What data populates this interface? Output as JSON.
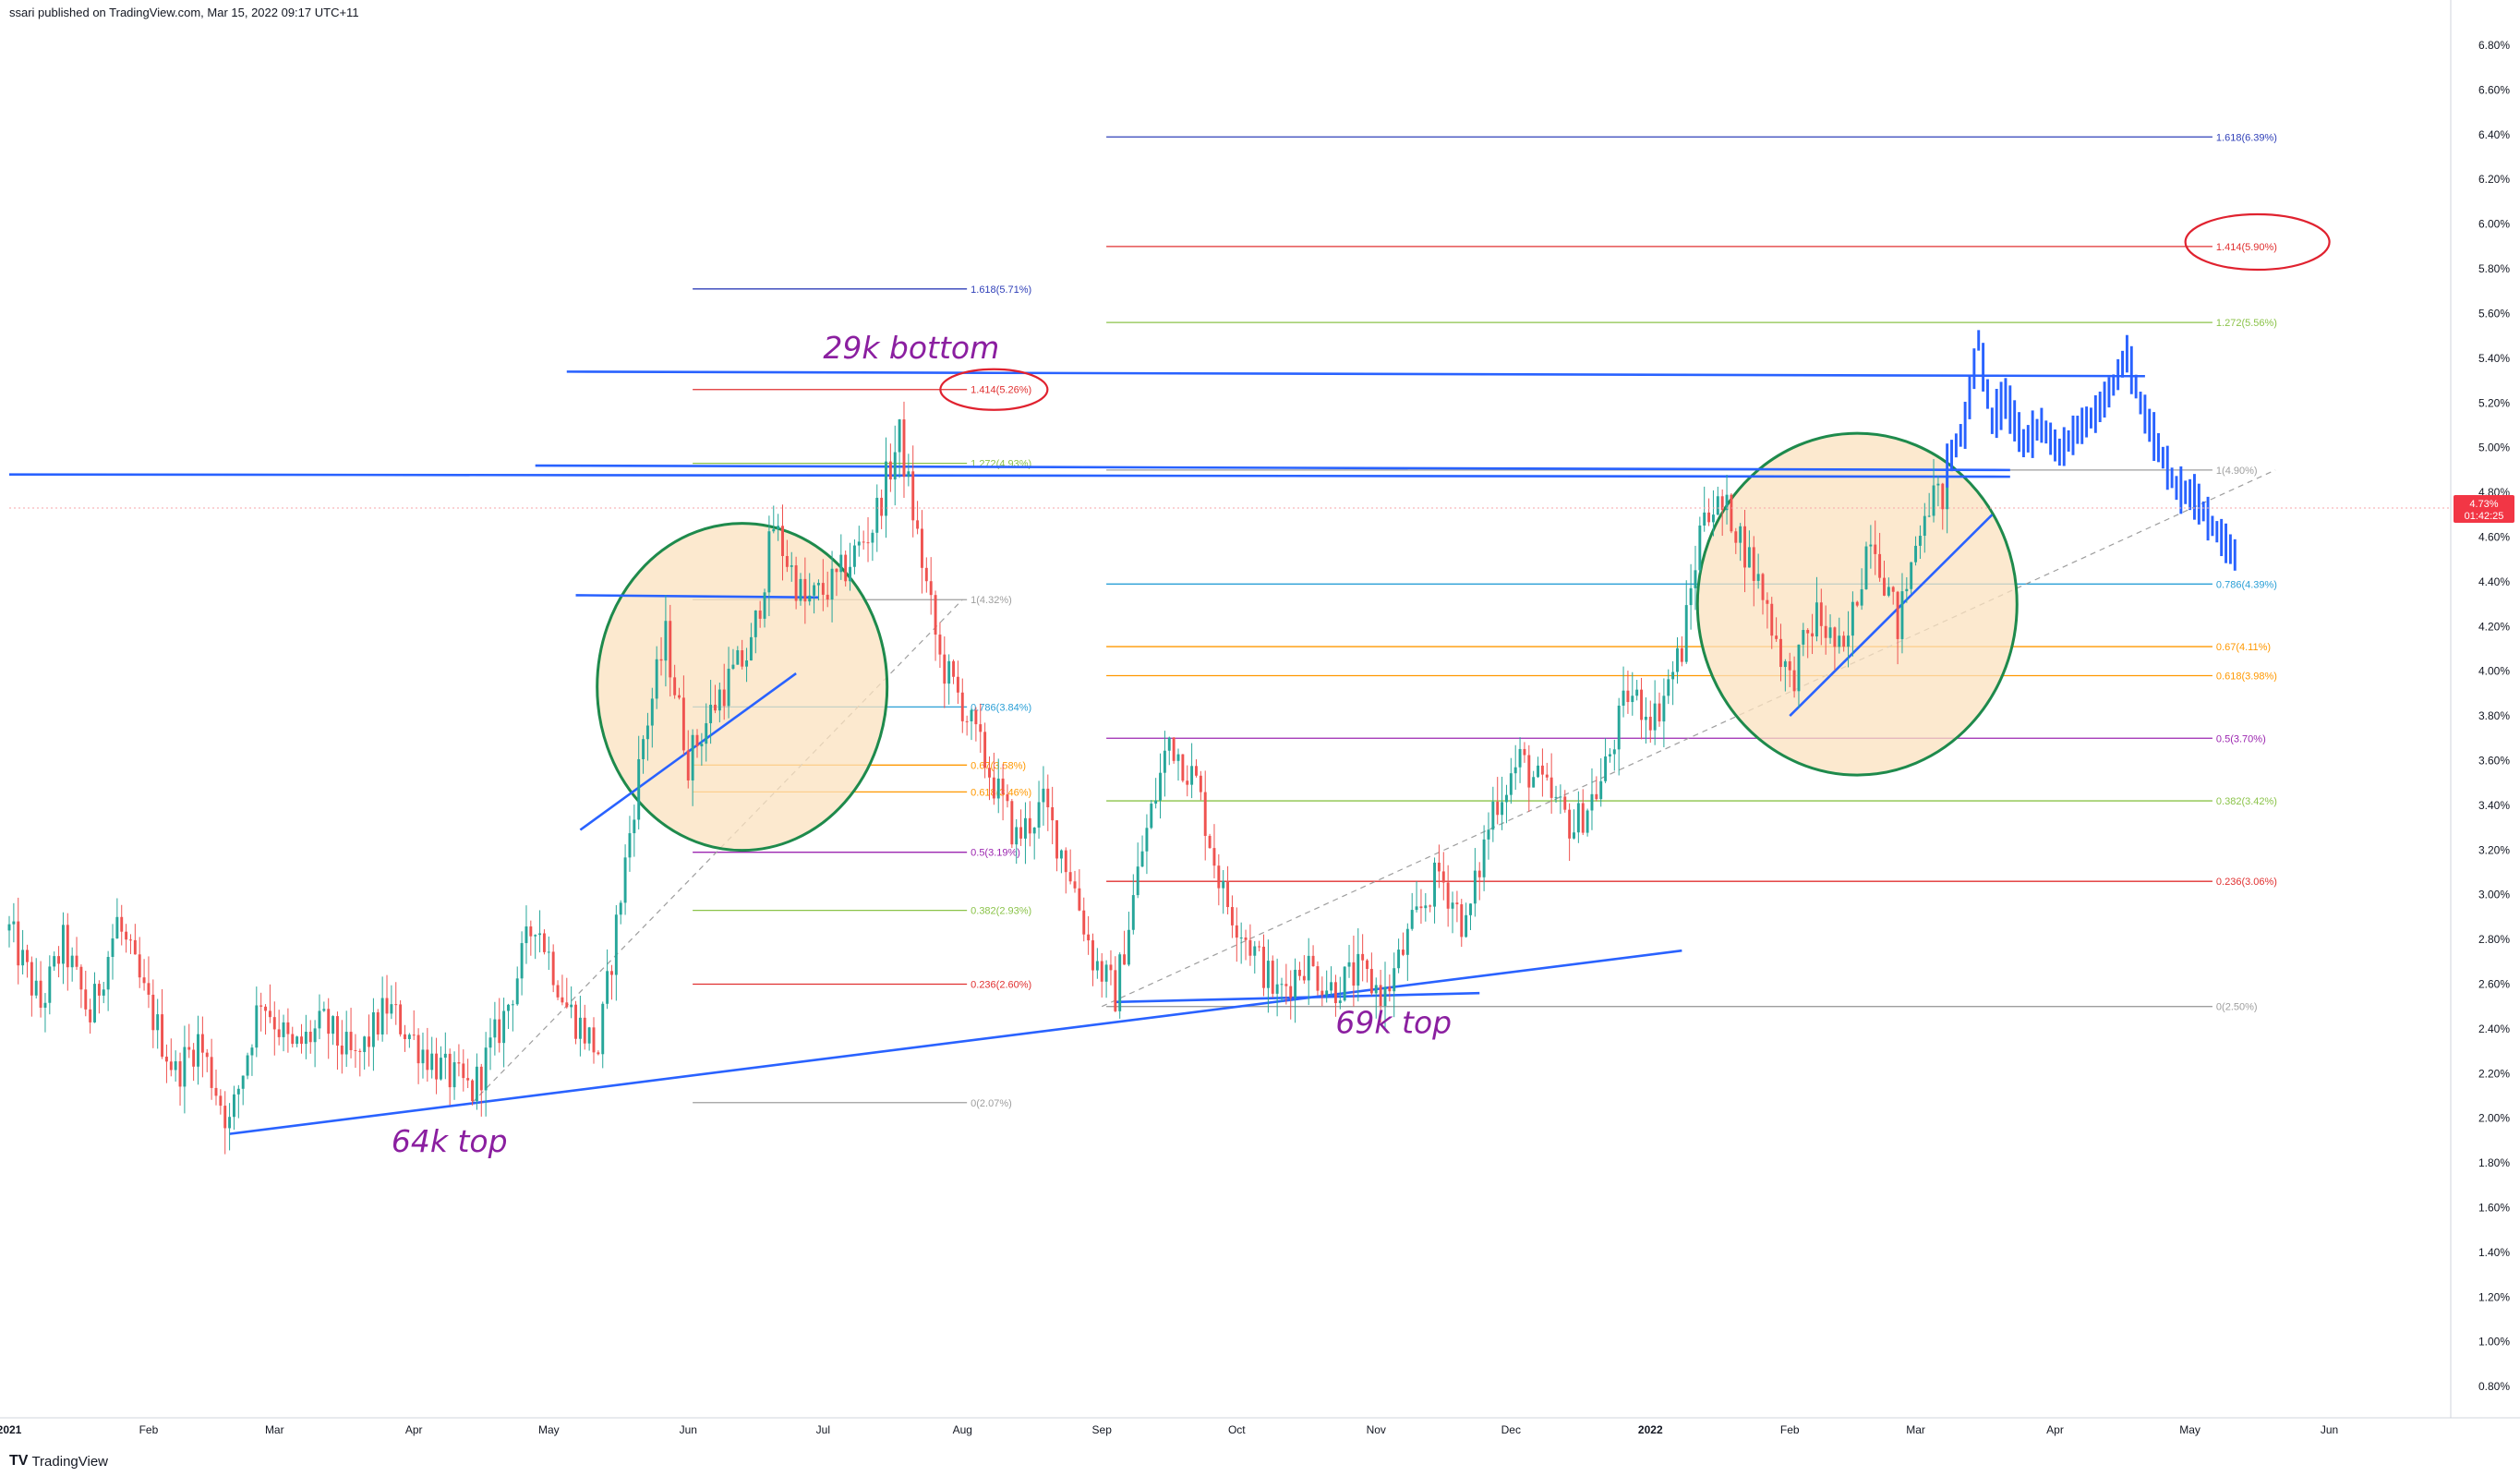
{
  "header": {
    "published_text": "ssari published on TradingView.com, Mar 15, 2022 09:17 UTC+11"
  },
  "footer": {
    "logo_text": "TV",
    "brand": "TradingView"
  },
  "price_badge": {
    "price": "4.73%",
    "countdown": "01:42:25",
    "color": "#f23645"
  },
  "chart_data": {
    "type": "candlestick",
    "title": "",
    "xlabel": "",
    "ylabel": "",
    "ylim": [
      0.66,
      6.92
    ],
    "yticks": [
      "6.80%",
      "6.60%",
      "6.40%",
      "6.20%",
      "6.00%",
      "5.80%",
      "5.60%",
      "5.40%",
      "5.20%",
      "5.00%",
      "4.80%",
      "4.60%",
      "4.40%",
      "4.20%",
      "4.00%",
      "3.80%",
      "3.60%",
      "3.40%",
      "3.20%",
      "3.00%",
      "2.80%",
      "2.60%",
      "2.40%",
      "2.20%",
      "2.00%",
      "1.80%",
      "1.60%",
      "1.40%",
      "1.20%",
      "1.00%",
      "0.80%"
    ],
    "xticks": [
      "2021",
      "Feb",
      "Mar",
      "Apr",
      "May",
      "Jun",
      "Jul",
      "Aug",
      "Sep",
      "Oct",
      "Nov",
      "Dec",
      "2022",
      "Feb",
      "Mar",
      "Apr",
      "May",
      "Jun"
    ],
    "xtick_days": [
      0,
      31,
      59,
      90,
      120,
      151,
      181,
      212,
      243,
      273,
      304,
      334,
      365,
      396,
      424,
      455,
      485,
      516
    ],
    "x_range_days": [
      0,
      543
    ],
    "current_price": 4.73,
    "price_path": [
      {
        "d": 0,
        "v": 2.84
      },
      {
        "d": 7,
        "v": 2.5
      },
      {
        "d": 12,
        "v": 2.78
      },
      {
        "d": 18,
        "v": 2.45
      },
      {
        "d": 24,
        "v": 2.88
      },
      {
        "d": 30,
        "v": 2.55
      },
      {
        "d": 37,
        "v": 2.2
      },
      {
        "d": 42,
        "v": 2.35
      },
      {
        "d": 49,
        "v": 1.97
      },
      {
        "d": 56,
        "v": 2.55
      },
      {
        "d": 63,
        "v": 2.3
      },
      {
        "d": 70,
        "v": 2.42
      },
      {
        "d": 77,
        "v": 2.25
      },
      {
        "d": 84,
        "v": 2.5
      },
      {
        "d": 90,
        "v": 2.35
      },
      {
        "d": 97,
        "v": 2.2
      },
      {
        "d": 103,
        "v": 2.12
      },
      {
        "d": 110,
        "v": 2.45
      },
      {
        "d": 117,
        "v": 2.9
      },
      {
        "d": 124,
        "v": 2.5
      },
      {
        "d": 131,
        "v": 2.3
      },
      {
        "d": 136,
        "v": 3.0
      },
      {
        "d": 141,
        "v": 3.7
      },
      {
        "d": 146,
        "v": 4.15
      },
      {
        "d": 151,
        "v": 3.6
      },
      {
        "d": 158,
        "v": 3.9
      },
      {
        "d": 165,
        "v": 4.1
      },
      {
        "d": 170,
        "v": 4.65
      },
      {
        "d": 177,
        "v": 4.3
      },
      {
        "d": 184,
        "v": 4.4
      },
      {
        "d": 192,
        "v": 4.65
      },
      {
        "d": 198,
        "v": 5.05
      },
      {
        "d": 202,
        "v": 4.6
      },
      {
        "d": 207,
        "v": 4.05
      },
      {
        "d": 212,
        "v": 3.85
      },
      {
        "d": 218,
        "v": 3.55
      },
      {
        "d": 224,
        "v": 3.25
      },
      {
        "d": 230,
        "v": 3.4
      },
      {
        "d": 236,
        "v": 3.1
      },
      {
        "d": 241,
        "v": 2.72
      },
      {
        "d": 246,
        "v": 2.55
      },
      {
        "d": 252,
        "v": 3.2
      },
      {
        "d": 258,
        "v": 3.7
      },
      {
        "d": 264,
        "v": 3.5
      },
      {
        "d": 270,
        "v": 3.0
      },
      {
        "d": 276,
        "v": 2.78
      },
      {
        "d": 282,
        "v": 2.55
      },
      {
        "d": 288,
        "v": 2.7
      },
      {
        "d": 294,
        "v": 2.58
      },
      {
        "d": 300,
        "v": 2.65
      },
      {
        "d": 306,
        "v": 2.55
      },
      {
        "d": 312,
        "v": 2.85
      },
      {
        "d": 318,
        "v": 3.1
      },
      {
        "d": 324,
        "v": 2.85
      },
      {
        "d": 330,
        "v": 3.4
      },
      {
        "d": 336,
        "v": 3.6
      },
      {
        "d": 342,
        "v": 3.45
      },
      {
        "d": 348,
        "v": 3.3
      },
      {
        "d": 354,
        "v": 3.5
      },
      {
        "d": 360,
        "v": 3.9
      },
      {
        "d": 366,
        "v": 3.8
      },
      {
        "d": 372,
        "v": 4.1
      },
      {
        "d": 377,
        "v": 4.75
      },
      {
        "d": 383,
        "v": 4.7
      },
      {
        "d": 390,
        "v": 4.35
      },
      {
        "d": 396,
        "v": 3.95
      },
      {
        "d": 402,
        "v": 4.25
      },
      {
        "d": 408,
        "v": 4.05
      },
      {
        "d": 414,
        "v": 4.65
      },
      {
        "d": 420,
        "v": 4.2
      },
      {
        "d": 426,
        "v": 4.75
      },
      {
        "d": 431,
        "v": 4.8
      }
    ],
    "projection_path": [
      {
        "d": 431,
        "v": 4.92
      },
      {
        "d": 435,
        "v": 5.1
      },
      {
        "d": 438,
        "v": 5.48
      },
      {
        "d": 441,
        "v": 5.12
      },
      {
        "d": 444,
        "v": 5.22
      },
      {
        "d": 448,
        "v": 5.02
      },
      {
        "d": 452,
        "v": 5.1
      },
      {
        "d": 456,
        "v": 4.98
      },
      {
        "d": 460,
        "v": 5.08
      },
      {
        "d": 464,
        "v": 5.15
      },
      {
        "d": 468,
        "v": 5.28
      },
      {
        "d": 471,
        "v": 5.42
      },
      {
        "d": 474,
        "v": 5.2
      },
      {
        "d": 478,
        "v": 5.0
      },
      {
        "d": 482,
        "v": 4.82
      },
      {
        "d": 486,
        "v": 4.78
      },
      {
        "d": 490,
        "v": 4.65
      },
      {
        "d": 495,
        "v": 4.52
      }
    ],
    "fib_series": [
      {
        "colors_ref": "left",
        "levels": [
          {
            "label": "1.618(5.71%)",
            "value": 5.71,
            "color": "#2f3fb8"
          },
          {
            "label": "1.414(5.26%)",
            "value": 5.26,
            "color": "#e03030"
          },
          {
            "label": "1.272(4.93%)",
            "value": 4.93,
            "color": "#8bc34a"
          },
          {
            "label": "1(4.32%)",
            "value": 4.32,
            "color": "#9e9e9e"
          },
          {
            "label": "0.786(3.84%)",
            "value": 3.84,
            "color": "#2a9fd6"
          },
          {
            "label": "0.67(3.58%)",
            "value": 3.58,
            "color": "#ff9800"
          },
          {
            "label": "0.618(3.46%)",
            "value": 3.46,
            "color": "#ff9800"
          },
          {
            "label": "0.5(3.19%)",
            "value": 3.19,
            "color": "#9c27b0"
          },
          {
            "label": "0.382(2.93%)",
            "value": 2.93,
            "color": "#8bc34a"
          },
          {
            "label": "0.236(2.60%)",
            "value": 2.6,
            "color": "#e03030"
          },
          {
            "label": "0(2.07%)",
            "value": 2.07,
            "color": "#9e9e9e"
          }
        ]
      },
      {
        "colors_ref": "right",
        "levels": [
          {
            "label": "1.618(6.39%)",
            "value": 6.39,
            "color": "#2f3fb8"
          },
          {
            "label": "1.414(5.90%)",
            "value": 5.9,
            "color": "#e03030"
          },
          {
            "label": "1.272(5.56%)",
            "value": 5.56,
            "color": "#8bc34a"
          },
          {
            "label": "1(4.90%)",
            "value": 4.9,
            "color": "#9e9e9e"
          },
          {
            "label": "0.786(4.39%)",
            "value": 4.39,
            "color": "#2a9fd6"
          },
          {
            "label": "0.67(4.11%)",
            "value": 4.11,
            "color": "#ff9800"
          },
          {
            "label": "0.618(3.98%)",
            "value": 3.98,
            "color": "#ff9800"
          },
          {
            "label": "0.5(3.70%)",
            "value": 3.7,
            "color": "#9c27b0"
          },
          {
            "label": "0.382(3.42%)",
            "value": 3.42,
            "color": "#8bc34a"
          },
          {
            "label": "0.236(3.06%)",
            "value": 3.06,
            "color": "#e03030"
          },
          {
            "label": "0(2.50%)",
            "value": 2.5,
            "color": "#9e9e9e"
          }
        ]
      }
    ],
    "annotations": [
      {
        "text": "29k bottom",
        "d": 181,
        "v": 5.4
      },
      {
        "text": "64k top",
        "d": 85,
        "v": 1.85
      },
      {
        "text": "69k top",
        "d": 295,
        "v": 2.38
      }
    ],
    "colors": {
      "up": "#26a69a",
      "down": "#ef5350",
      "trend": "#2962ff",
      "highlight_fill": "#fbe1bf",
      "highlight_stroke": "#1e8a4c",
      "annotation": "#8b1fa0",
      "circle_mark": "#e0222f"
    }
  }
}
